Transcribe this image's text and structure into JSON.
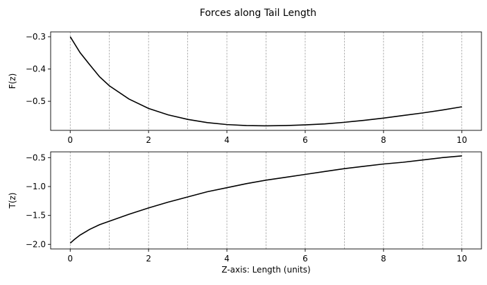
{
  "figure": {
    "title": "Forces along Tail Length"
  },
  "chart_data": [
    {
      "type": "line",
      "ylabel": "F(z)",
      "xlabel": "",
      "xlim": [
        -0.5,
        10.5
      ],
      "ylim": [
        -0.59,
        -0.285
      ],
      "x_ticks": [
        "0",
        "2",
        "4",
        "6",
        "8",
        "10"
      ],
      "y_ticks": [
        "-0.3",
        "-0.4",
        "-0.5"
      ],
      "y_tick_values": [
        -0.3,
        -0.4,
        -0.5
      ],
      "grid": "vertical dashed at integer x",
      "series": [
        {
          "x": [
            0,
            0.25,
            0.5,
            0.75,
            1,
            1.5,
            2,
            2.5,
            3,
            3.5,
            4,
            4.5,
            5,
            5.5,
            6,
            6.5,
            7,
            7.5,
            8,
            8.5,
            9,
            9.5,
            10
          ],
          "y": [
            -0.3,
            -0.349,
            -0.387,
            -0.424,
            -0.452,
            -0.493,
            -0.522,
            -0.542,
            -0.556,
            -0.566,
            -0.572,
            -0.575,
            -0.576,
            -0.575,
            -0.573,
            -0.57,
            -0.565,
            -0.559,
            -0.552,
            -0.544,
            -0.536,
            -0.527,
            -0.517
          ],
          "color": "#000000"
        }
      ]
    },
    {
      "type": "line",
      "ylabel": "T(z)",
      "xlabel": "Z-axis: Length (units)",
      "xlim": [
        -0.5,
        10.5
      ],
      "ylim": [
        -2.08,
        -0.4
      ],
      "x_ticks": [
        "0",
        "2",
        "4",
        "6",
        "8",
        "10"
      ],
      "y_ticks": [
        "-0.5",
        "-1.0",
        "-1.5",
        "-2.0"
      ],
      "y_tick_values": [
        -0.5,
        -1.0,
        -1.5,
        -2.0
      ],
      "grid": "vertical dashed at integer x",
      "series": [
        {
          "x": [
            0,
            0.1,
            0.25,
            0.5,
            0.75,
            1,
            1.5,
            2,
            2.5,
            3,
            3.5,
            4,
            4.5,
            5,
            5.5,
            6,
            6.5,
            7,
            7.5,
            8,
            8.5,
            9,
            9.5,
            10
          ],
          "y": [
            -1.98,
            -1.92,
            -1.84,
            -1.74,
            -1.66,
            -1.6,
            -1.48,
            -1.37,
            -1.27,
            -1.18,
            -1.09,
            -1.02,
            -0.95,
            -0.89,
            -0.84,
            -0.79,
            -0.74,
            -0.69,
            -0.65,
            -0.61,
            -0.58,
            -0.54,
            -0.5,
            -0.47
          ],
          "color": "#000000"
        }
      ]
    }
  ]
}
